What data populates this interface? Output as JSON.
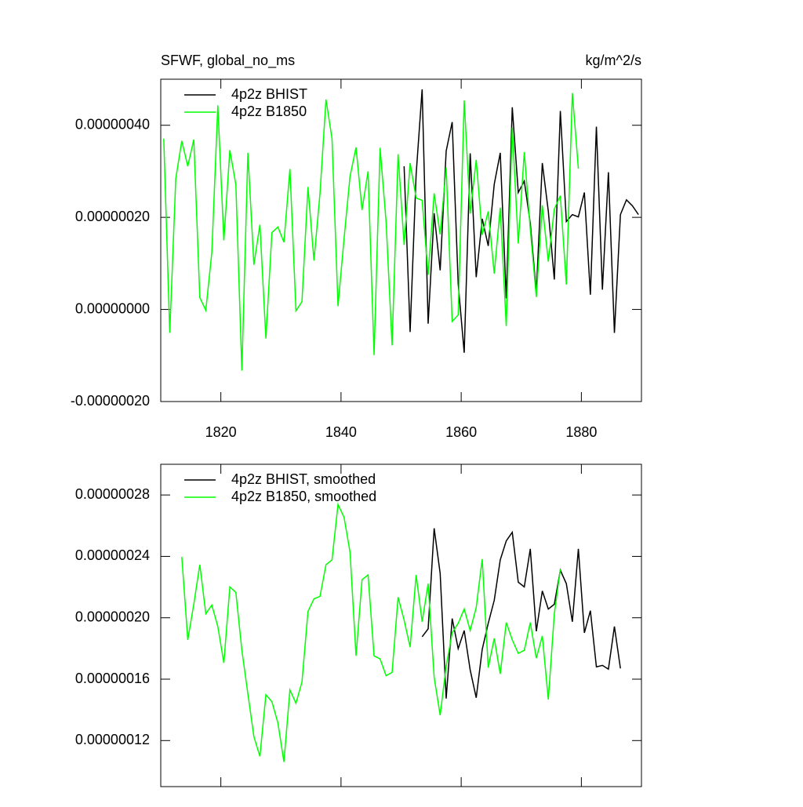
{
  "chart_data": [
    {
      "type": "line",
      "title": "SFWF, global_no_ms",
      "units": "kg/m^2/s",
      "xlim": [
        1810,
        1890
      ],
      "xticks": [
        1820,
        1840,
        1860,
        1880
      ],
      "xticklabels": true,
      "ylim": [
        -2e-07,
        5e-07
      ],
      "yticks": [
        {
          "value": -2e-07,
          "label": "-0.00000020"
        },
        {
          "value": 0,
          "label": "0.00000000"
        },
        {
          "value": 2e-07,
          "label": "0.00000020"
        },
        {
          "value": 4e-07,
          "label": "0.00000040"
        }
      ],
      "series": [
        {
          "name": "4p2z BHIST",
          "color": "#000000",
          "x": [
            1850.5,
            1851.5,
            1852.5,
            1853.5,
            1854.5,
            1855.5,
            1856.5,
            1857.5,
            1858.5,
            1859.5,
            1860.5,
            1861.5,
            1862.5,
            1863.5,
            1864.5,
            1865.5,
            1866.5,
            1867.5,
            1868.5,
            1869.5,
            1870.5,
            1871.5,
            1872.5,
            1873.5,
            1874.5,
            1875.5,
            1876.5,
            1877.5,
            1878.5,
            1879.5,
            1880.5,
            1881.5,
            1882.5,
            1883.5,
            1884.5,
            1885.5,
            1886.5,
            1887.5,
            1888.5,
            1889.5
          ],
          "values": [
            3.11e-07,
            -4.9e-08,
            2.93e-07,
            4.78e-07,
            -3.1e-08,
            2.09e-07,
            8.5e-08,
            3.44e-07,
            4.07e-07,
            5.6e-08,
            -9.4e-08,
            3.39e-07,
            7e-08,
            1.97e-07,
            1.38e-07,
            2.72e-07,
            3.4e-07,
            2.4e-08,
            4.39e-07,
            2.54e-07,
            2.79e-07,
            1.87e-07,
            3.7e-08,
            3.18e-07,
            2.13e-07,
            6.5e-08,
            4.31e-07,
            1.91e-07,
            2.06e-07,
            2.01e-07,
            2.54e-07,
            3.2e-08,
            3.97e-07,
            4.3e-08,
            2.98e-07,
            -5.1e-08,
            2.06e-07,
            2.38e-07,
            2.25e-07,
            2.06e-07
          ]
        },
        {
          "name": "4p2z B1850",
          "color": "#00ff00",
          "x": [
            1810.5,
            1811.5,
            1812.5,
            1813.5,
            1814.5,
            1815.5,
            1816.5,
            1817.5,
            1818.5,
            1819.5,
            1820.5,
            1821.5,
            1822.5,
            1823.5,
            1824.5,
            1825.5,
            1826.5,
            1827.5,
            1828.5,
            1829.5,
            1830.5,
            1831.5,
            1832.5,
            1833.5,
            1834.5,
            1835.5,
            1836.5,
            1837.5,
            1838.5,
            1839.5,
            1840.5,
            1841.5,
            1842.5,
            1843.5,
            1844.5,
            1845.5,
            1846.5,
            1847.5,
            1848.5,
            1849.5,
            1850.5,
            1851.5,
            1852.5,
            1853.5,
            1854.5,
            1855.5,
            1856.5,
            1857.5,
            1858.5,
            1859.5,
            1860.5,
            1861.5,
            1862.5,
            1863.5,
            1864.5,
            1865.5,
            1866.5,
            1867.5,
            1868.5,
            1869.5,
            1870.5,
            1871.5,
            1872.5,
            1873.5,
            1874.5,
            1875.5,
            1876.5,
            1877.5,
            1878.5,
            1879.5
          ],
          "values": [
            3.71e-07,
            -5.1e-08,
            2.84e-07,
            3.66e-07,
            3.11e-07,
            3.69e-07,
            2.6e-08,
            -2e-09,
            1.24e-07,
            4.43e-07,
            1.5e-07,
            3.46e-07,
            2.71e-07,
            -1.33e-07,
            3.4e-07,
            9.7e-08,
            1.84e-07,
            -6.3e-08,
            1.67e-07,
            1.79e-07,
            1.46e-07,
            3.05e-07,
            -3e-09,
            1.7e-08,
            2.66e-07,
            1.06e-07,
            2.52e-07,
            4.56e-07,
            3.71e-07,
            7e-09,
            1.53e-07,
            2.89e-07,
            3.52e-07,
            2.16e-07,
            3e-07,
            -9.9e-08,
            3.51e-07,
            1.91e-07,
            -7.8e-08,
            3.37e-07,
            1.4e-07,
            3.18e-07,
            2.42e-07,
            2.37e-07,
            7.5e-08,
            2.52e-07,
            1.63e-07,
            3.08e-07,
            -2.6e-08,
            -1.2e-08,
            4.54e-07,
            2.08e-07,
            3.25e-07,
            1.62e-07,
            2.13e-07,
            7.8e-08,
            2.21e-07,
            -3.6e-08,
            3.95e-07,
            1.43e-07,
            3.42e-07,
            1.74e-07,
            2.7e-08,
            2.26e-07,
            1.04e-07,
            2.18e-07,
            2.47e-07,
            5.4e-08,
            4.7e-07,
            3.06e-07
          ]
        }
      ]
    },
    {
      "type": "line",
      "xlim": [
        1810,
        1890
      ],
      "xticks": [
        1820,
        1840,
        1860,
        1880
      ],
      "xticklabels": false,
      "ylim": [
        9e-08,
        3e-07
      ],
      "yticks": [
        {
          "value": 1.2e-07,
          "label": "0.00000012"
        },
        {
          "value": 1.6e-07,
          "label": "0.00000016"
        },
        {
          "value": 2e-07,
          "label": "0.00000020"
        },
        {
          "value": 2.4e-07,
          "label": "0.00000024"
        },
        {
          "value": 2.8e-07,
          "label": "0.00000028"
        }
      ],
      "series": [
        {
          "name": "4p2z BHIST, smoothed",
          "color": "#000000",
          "x": [
            1853.5,
            1854.5,
            1855.5,
            1856.5,
            1857.5,
            1858.5,
            1859.5,
            1860.5,
            1861.5,
            1862.5,
            1863.5,
            1864.5,
            1865.5,
            1866.5,
            1867.5,
            1868.5,
            1869.5,
            1870.5,
            1871.5,
            1872.5,
            1873.5,
            1874.5,
            1875.5,
            1876.5,
            1877.5,
            1878.5,
            1879.5,
            1880.5,
            1881.5,
            1882.5,
            1883.5,
            1884.5,
            1885.5,
            1886.5
          ],
          "values": [
            1.876e-07,
            1.928e-07,
            2.583e-07,
            2.289e-07,
            1.474e-07,
            1.995e-07,
            1.799e-07,
            1.917e-07,
            1.659e-07,
            1.479e-07,
            1.794e-07,
            1.964e-07,
            2.114e-07,
            2.377e-07,
            2.501e-07,
            2.557e-07,
            2.232e-07,
            2.201e-07,
            2.449e-07,
            1.912e-07,
            2.175e-07,
            2.057e-07,
            2.088e-07,
            2.31e-07,
            2.222e-07,
            1.974e-07,
            2.449e-07,
            1.902e-07,
            2.046e-07,
            1.68e-07,
            1.69e-07,
            1.665e-07,
            1.943e-07,
            1.67e-07
          ]
        },
        {
          "name": "4p2z B1850, smoothed",
          "color": "#00ff00",
          "x": [
            1813.5,
            1814.5,
            1815.5,
            1816.5,
            1817.5,
            1818.5,
            1819.5,
            1820.5,
            1821.5,
            1822.5,
            1823.5,
            1824.5,
            1825.5,
            1826.5,
            1827.5,
            1828.5,
            1829.5,
            1830.5,
            1831.5,
            1832.5,
            1833.5,
            1834.5,
            1835.5,
            1836.5,
            1837.5,
            1838.5,
            1839.5,
            1840.5,
            1841.5,
            1842.5,
            1843.5,
            1844.5,
            1845.5,
            1846.5,
            1847.5,
            1848.5,
            1849.5,
            1850.5,
            1851.5,
            1852.5,
            1853.5,
            1854.5,
            1855.5,
            1856.5,
            1857.5,
            1858.5,
            1859.5,
            1860.5,
            1861.5,
            1862.5,
            1863.5,
            1864.5,
            1865.5,
            1866.5,
            1867.5,
            1868.5,
            1869.5,
            1870.5,
            1871.5,
            1872.5,
            1873.5,
            1874.5,
            1875.5,
            1876.5
          ],
          "values": [
            2.397e-07,
            1.856e-07,
            2.088e-07,
            2.346e-07,
            2.026e-07,
            2.083e-07,
            1.943e-07,
            1.706e-07,
            2.201e-07,
            2.165e-07,
            1.788e-07,
            1.505e-07,
            1.226e-07,
            1.097e-07,
            1.499e-07,
            1.453e-07,
            1.314e-07,
            1.061e-07,
            1.53e-07,
            1.443e-07,
            1.582e-07,
            2.041e-07,
            2.124e-07,
            2.139e-07,
            2.346e-07,
            2.377e-07,
            2.738e-07,
            2.655e-07,
            2.428e-07,
            1.752e-07,
            2.248e-07,
            2.279e-07,
            1.752e-07,
            1.732e-07,
            1.623e-07,
            1.644e-07,
            2.134e-07,
            1.985e-07,
            1.809e-07,
            2.279e-07,
            1.974e-07,
            2.222e-07,
            1.613e-07,
            1.365e-07,
            1.685e-07,
            1.902e-07,
            1.964e-07,
            2.057e-07,
            1.917e-07,
            2.067e-07,
            2.382e-07,
            1.675e-07,
            1.866e-07,
            1.634e-07,
            1.969e-07,
            1.856e-07,
            1.768e-07,
            1.788e-07,
            1.969e-07,
            1.737e-07,
            1.881e-07,
            1.468e-07,
            2.026e-07,
            2.315e-07
          ]
        }
      ]
    }
  ]
}
